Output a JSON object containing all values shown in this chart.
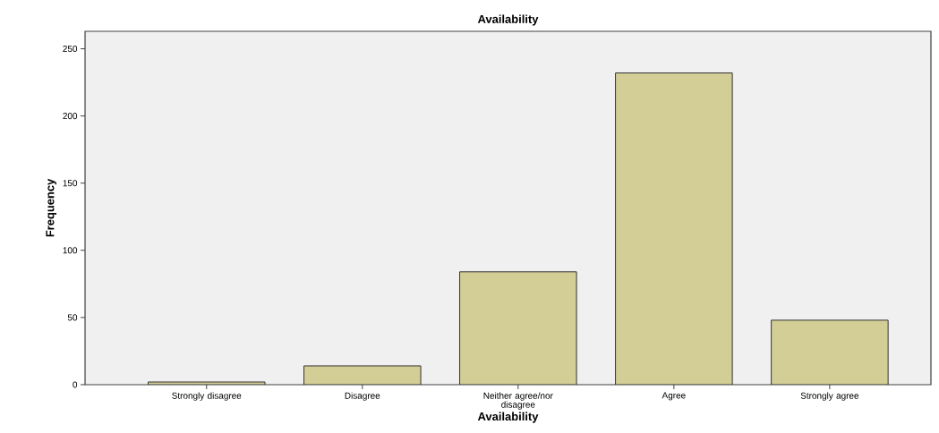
{
  "chart_data": {
    "type": "bar",
    "title": "Availability",
    "xlabel": "Availability",
    "ylabel": "Frequency",
    "categories": [
      "Strongly disagree",
      "Disagree",
      "Neither agree/nor disagree",
      "Agree",
      "Strongly agree"
    ],
    "values": [
      2,
      14,
      84,
      232,
      48
    ],
    "color": "#d3cd96",
    "ylim": [
      0,
      263
    ],
    "yticks": [
      0,
      50,
      100,
      150,
      200,
      250
    ],
    "grid": false
  }
}
